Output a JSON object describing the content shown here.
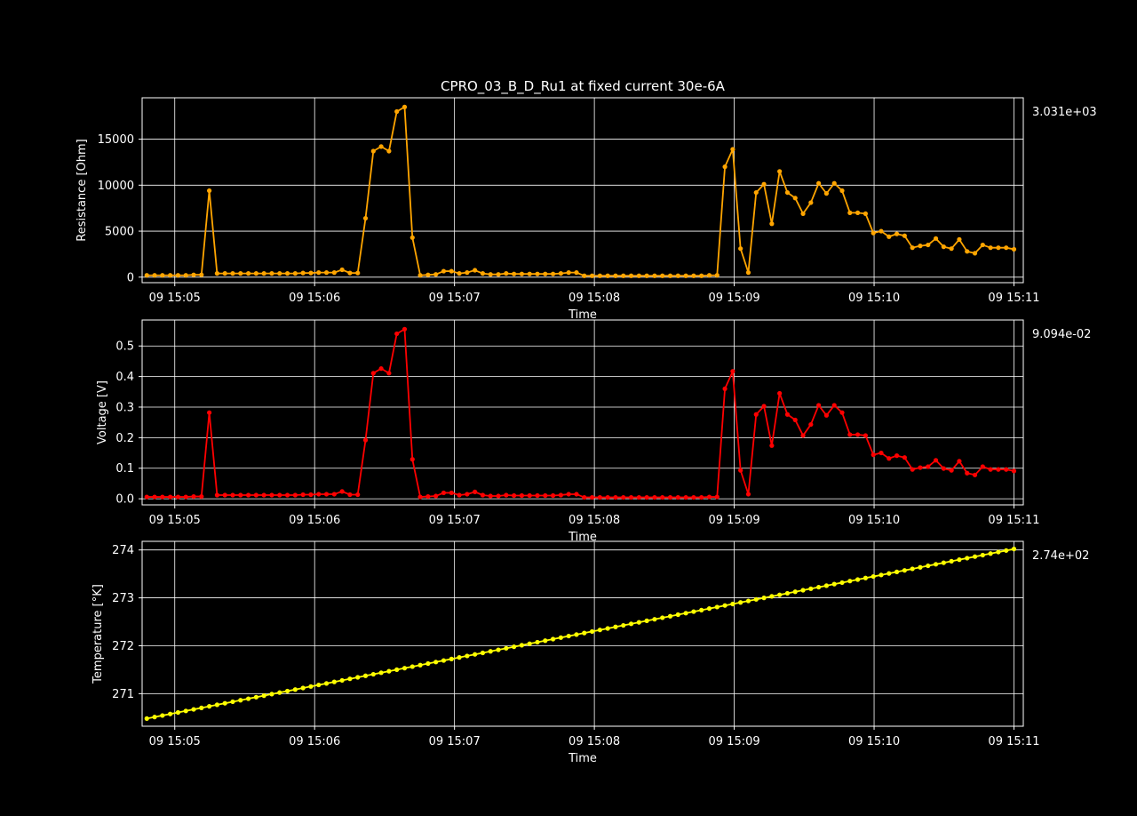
{
  "title": "CPRO_03_B_D_Ru1 at fixed current 30e-6A",
  "colors": {
    "background": "#000000",
    "axes": "#ffffff",
    "grid": "#ffffff"
  },
  "chart_data": [
    {
      "type": "line",
      "title": "CPRO_03_B_D_Ru1 at fixed current 30e-6A",
      "xlabel": "Time",
      "ylabel": "Resistance [Ohm]",
      "xlim": [
        "09 15:04:46",
        "09 15:11:04"
      ],
      "x_ticks": [
        "09 15:05",
        "09 15:06",
        "09 15:07",
        "09 15:08",
        "09 15:09",
        "09 15:10",
        "09 15:11"
      ],
      "ylim": [
        -600,
        19500
      ],
      "y_ticks": [
        0,
        5000,
        10000,
        15000
      ],
      "y_tick_labels": [
        "0",
        "5000",
        "10000",
        "15000"
      ],
      "grid": true,
      "last_value_label": "3.031e+03",
      "series": [
        {
          "color": "#ffa500",
          "marker": "circle",
          "x_start": "09 15:04:48",
          "x_end": "09 15:11:00",
          "values": [
            200,
            200,
            200,
            200,
            200,
            200,
            250,
            250,
            9400,
            400,
            400,
            400,
            400,
            400,
            400,
            400,
            400,
            400,
            400,
            400,
            450,
            450,
            500,
            500,
            500,
            800,
            450,
            450,
            6400,
            13700,
            14200,
            13700,
            18000,
            18500,
            4300,
            200,
            250,
            300,
            650,
            650,
            400,
            500,
            750,
            400,
            300,
            300,
            400,
            350,
            350,
            350,
            350,
            350,
            350,
            400,
            500,
            500,
            150,
            150,
            150,
            150,
            150,
            150,
            150,
            150,
            150,
            150,
            150,
            150,
            150,
            150,
            150,
            150,
            200,
            200,
            12000,
            13900,
            3100,
            500,
            9200,
            10100,
            5800,
            11500,
            9200,
            8600,
            6900,
            8100,
            10200,
            9100,
            10200,
            9400,
            7000,
            7000,
            6900,
            4800,
            5000,
            4400,
            4700,
            4500,
            3200,
            3400,
            3500,
            4200,
            3300,
            3100,
            4100,
            2800,
            2600,
            3500,
            3200,
            3200,
            3200,
            3031
          ]
        }
      ]
    },
    {
      "type": "line",
      "title": "",
      "xlabel": "Time",
      "ylabel": "Voltage [V]",
      "xlim": [
        "09 15:04:46",
        "09 15:11:04"
      ],
      "x_ticks": [
        "09 15:05",
        "09 15:06",
        "09 15:07",
        "09 15:08",
        "09 15:09",
        "09 15:10",
        "09 15:11"
      ],
      "ylim": [
        -0.02,
        0.585
      ],
      "y_ticks": [
        0.0,
        0.1,
        0.2,
        0.3,
        0.4,
        0.5
      ],
      "y_tick_labels": [
        "0.0",
        "0.1",
        "0.2",
        "0.3",
        "0.4",
        "0.5"
      ],
      "grid": true,
      "last_value_label": "9.094e-02",
      "series": [
        {
          "color": "#ff0000",
          "marker": "circle",
          "x_start": "09 15:04:48",
          "x_end": "09 15:11:00",
          "values": [
            0.006,
            0.006,
            0.006,
            0.006,
            0.006,
            0.006,
            0.0075,
            0.0075,
            0.282,
            0.012,
            0.012,
            0.012,
            0.012,
            0.012,
            0.012,
            0.012,
            0.012,
            0.012,
            0.012,
            0.012,
            0.0135,
            0.0135,
            0.015,
            0.015,
            0.015,
            0.024,
            0.0135,
            0.0135,
            0.192,
            0.411,
            0.426,
            0.411,
            0.54,
            0.555,
            0.129,
            0.006,
            0.0075,
            0.009,
            0.0195,
            0.0195,
            0.012,
            0.015,
            0.0225,
            0.012,
            0.009,
            0.009,
            0.012,
            0.0105,
            0.0105,
            0.0105,
            0.0105,
            0.0105,
            0.0105,
            0.012,
            0.015,
            0.015,
            0.0045,
            0.0045,
            0.0045,
            0.0045,
            0.0045,
            0.0045,
            0.0045,
            0.0045,
            0.0045,
            0.0045,
            0.0045,
            0.0045,
            0.0045,
            0.0045,
            0.0045,
            0.0045,
            0.006,
            0.006,
            0.36,
            0.417,
            0.093,
            0.015,
            0.276,
            0.303,
            0.174,
            0.345,
            0.276,
            0.258,
            0.207,
            0.243,
            0.306,
            0.273,
            0.306,
            0.282,
            0.21,
            0.21,
            0.207,
            0.144,
            0.15,
            0.132,
            0.141,
            0.135,
            0.096,
            0.102,
            0.105,
            0.126,
            0.099,
            0.093,
            0.123,
            0.084,
            0.078,
            0.105,
            0.096,
            0.096,
            0.096,
            0.09094
          ]
        }
      ]
    },
    {
      "type": "line",
      "title": "",
      "xlabel": "Time",
      "ylabel": "Temperature [°K]",
      "xlim": [
        "09 15:04:46",
        "09 15:11:04"
      ],
      "x_ticks": [
        "09 15:05",
        "09 15:06",
        "09 15:07",
        "09 15:08",
        "09 15:09",
        "09 15:10",
        "09 15:11"
      ],
      "ylim": [
        270.32,
        274.18
      ],
      "y_ticks": [
        271,
        272,
        273,
        274
      ],
      "y_tick_labels": [
        "271",
        "272",
        "273",
        "274"
      ],
      "grid": true,
      "last_value_label": "2.74e+02",
      "series": [
        {
          "color": "#ffff00",
          "marker": "circle",
          "x_start": "09 15:04:48",
          "x_end": "09 15:11:00",
          "y_start": 270.48,
          "y_end": 274.02,
          "count": 112
        }
      ]
    }
  ]
}
